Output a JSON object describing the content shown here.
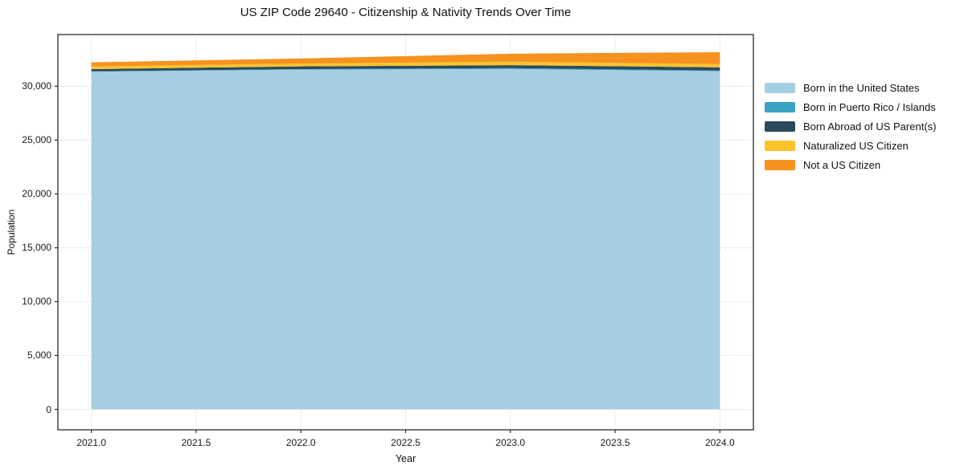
{
  "chart_data": {
    "type": "area",
    "stacked": true,
    "title": "US ZIP Code 29640 - Citizenship & Nativity Trends Over Time",
    "xlabel": "Year",
    "ylabel": "Population",
    "x": [
      2021,
      2022,
      2023,
      2024
    ],
    "series": [
      {
        "name": "Born in the United States",
        "color": "#a6cee3",
        "values": [
          31350,
          31550,
          31600,
          31400
        ]
      },
      {
        "name": "Born in Puerto Rico / Islands",
        "color": "#3aa2c2",
        "values": [
          30,
          45,
          80,
          55
        ]
      },
      {
        "name": "Born Abroad of US Parent(s)",
        "color": "#2b4a5c",
        "values": [
          210,
          250,
          280,
          300
        ]
      },
      {
        "name": "Naturalized US Citizen",
        "color": "#fcc32d",
        "values": [
          250,
          260,
          320,
          300
        ]
      },
      {
        "name": "Not a US Citizen",
        "color": "#f6921e",
        "values": [
          380,
          470,
          740,
          1110
        ]
      }
    ],
    "xlim": [
      2020.84,
      2024.16
    ],
    "ylim": [
      -1900,
      34800
    ],
    "x_tick_values": [
      2021.0,
      2021.5,
      2022.0,
      2022.5,
      2023.0,
      2023.5,
      2024.0
    ],
    "x_tick_labels": [
      "2021.0",
      "2021.5",
      "2022.0",
      "2022.5",
      "2023.0",
      "2023.5",
      "2024.0"
    ],
    "y_tick_values": [
      0,
      5000,
      10000,
      15000,
      20000,
      25000,
      30000
    ],
    "y_tick_labels": [
      "0",
      "5,000",
      "10,000",
      "15,000",
      "20,000",
      "25,000",
      "30,000"
    ],
    "legend_position": "right",
    "grid": true,
    "grid_color": "#ececec",
    "frame_color": "#2b2b2b",
    "background_color": "#ffffff"
  }
}
